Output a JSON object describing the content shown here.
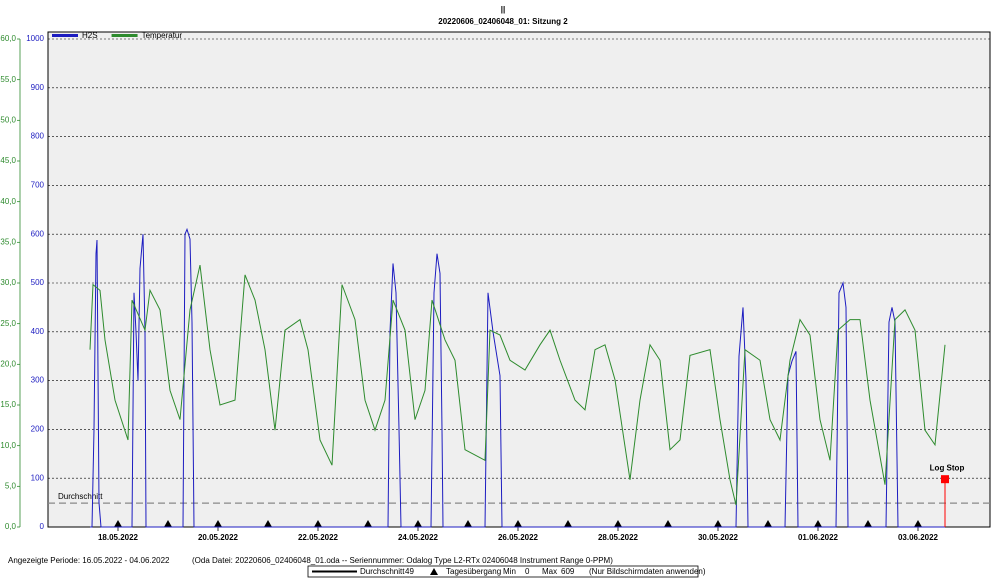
{
  "chart_data": {
    "type": "line",
    "marker": "||",
    "title": "20220606_02406048_01: Sitzung 2",
    "legend": "upper left",
    "grid": true,
    "xlim": [
      0.6,
      19.44
    ],
    "xticks": [
      {
        "value": 2,
        "label": "18.05.2022"
      },
      {
        "value": 4,
        "label": "20.05.2022"
      },
      {
        "value": 6,
        "label": "22.05.2022"
      },
      {
        "value": 8,
        "label": "24.05.2022"
      },
      {
        "value": 10,
        "label": "26.05.2022"
      },
      {
        "value": 12,
        "label": "28.05.2022"
      },
      {
        "value": 14,
        "label": "30.05.2022"
      },
      {
        "value": 16,
        "label": "01.06.2022"
      },
      {
        "value": 18,
        "label": "03.06.2022"
      }
    ],
    "ylim": [
      0,
      60
    ],
    "yticks": [
      {
        "value": 0,
        "label": "0,0"
      },
      {
        "value": 5,
        "label": "5,0"
      },
      {
        "value": 10,
        "label": "10,0"
      },
      {
        "value": 15,
        "label": "15,0"
      },
      {
        "value": 20,
        "label": "20,0"
      },
      {
        "value": 25,
        "label": "25,0"
      },
      {
        "value": 30,
        "label": "30,0"
      },
      {
        "value": 35,
        "label": "35,0"
      },
      {
        "value": 40,
        "label": "40,0"
      },
      {
        "value": 45,
        "label": "45,0"
      },
      {
        "value": 50,
        "label": "50,0"
      },
      {
        "value": 55,
        "label": "55,0"
      },
      {
        "value": 60,
        "label": "60,0"
      }
    ],
    "y_color": "#2e8b2e",
    "y2lim": [
      0,
      1000
    ],
    "y2ticks": [
      0,
      100,
      200,
      300,
      400,
      500,
      600,
      700,
      800,
      900,
      1000
    ],
    "y2_color": "#1c1cc0",
    "series": [
      {
        "name": "H2S",
        "color": "#1c1cc0",
        "axis": "y2",
        "x": [
          1.44,
          1.48,
          1.52,
          1.56,
          1.58,
          1.62,
          1.66,
          2.28,
          2.32,
          2.36,
          2.4,
          2.44,
          2.5,
          2.54,
          2.56,
          3.3,
          3.34,
          3.38,
          3.44,
          3.48,
          3.52,
          7.4,
          7.44,
          7.5,
          7.56,
          7.62,
          7.66,
          8.26,
          8.32,
          8.38,
          8.44,
          8.48,
          8.5,
          9.34,
          9.4,
          9.5,
          9.64,
          9.68,
          14.36,
          14.42,
          14.5,
          14.56,
          14.6,
          15.34,
          15.4,
          15.48,
          15.56,
          15.6,
          16.36,
          16.42,
          16.5,
          16.56,
          16.6,
          17.36,
          17.42,
          17.48,
          17.54,
          17.6,
          18.54
        ],
        "values": [
          0,
          0,
          200,
          560,
          588,
          50,
          0,
          0,
          480,
          400,
          300,
          530,
          600,
          400,
          0,
          0,
          600,
          610,
          590,
          420,
          0,
          0,
          400,
          540,
          480,
          200,
          0,
          0,
          480,
          560,
          520,
          200,
          0,
          0,
          480,
          400,
          310,
          0,
          0,
          350,
          450,
          300,
          0,
          0,
          310,
          340,
          360,
          0,
          0,
          480,
          500,
          450,
          0,
          0,
          420,
          450,
          420,
          0,
          0
        ]
      },
      {
        "name": "Temperatur",
        "color": "#2e8b2e",
        "axis": "y",
        "x": [
          1.44,
          1.5,
          1.64,
          1.74,
          1.94,
          2.2,
          2.28,
          2.54,
          2.64,
          2.84,
          3.04,
          3.24,
          3.44,
          3.64,
          3.84,
          4.04,
          4.34,
          4.54,
          4.74,
          4.94,
          5.14,
          5.34,
          5.64,
          5.8,
          6.04,
          6.28,
          6.48,
          6.74,
          6.94,
          7.14,
          7.34,
          7.5,
          7.74,
          7.94,
          8.14,
          8.28,
          8.54,
          8.74,
          8.94,
          9.34,
          9.44,
          9.64,
          9.84,
          10.14,
          10.44,
          10.64,
          10.84,
          11.14,
          11.34,
          11.54,
          11.74,
          11.94,
          12.24,
          12.44,
          12.64,
          12.84,
          13.04,
          13.24,
          13.44,
          13.84,
          14.04,
          14.24,
          14.36,
          14.54,
          14.84,
          15.04,
          15.24,
          15.44,
          15.64,
          15.84,
          16.04,
          16.24,
          16.4,
          16.64,
          16.84,
          17.04,
          17.34,
          17.54,
          17.74,
          17.94,
          18.14,
          18.34,
          18.54
        ],
        "values": [
          21.8,
          29.8,
          29.1,
          23.0,
          15.6,
          10.7,
          27.9,
          24.2,
          29.1,
          26.7,
          16.8,
          13.2,
          26.7,
          32.2,
          21.8,
          15.0,
          15.6,
          31.0,
          27.9,
          21.8,
          11.9,
          24.2,
          25.5,
          21.8,
          10.7,
          7.6,
          29.8,
          25.5,
          15.6,
          11.9,
          15.6,
          27.9,
          24.2,
          13.2,
          16.8,
          27.9,
          23.0,
          20.5,
          9.5,
          8.2,
          24.2,
          23.6,
          20.5,
          19.3,
          22.4,
          24.2,
          20.5,
          15.6,
          14.4,
          21.8,
          22.4,
          18.1,
          5.8,
          15.6,
          22.4,
          20.5,
          9.5,
          10.7,
          21.1,
          21.8,
          13.2,
          5.8,
          2.7,
          21.8,
          20.5,
          13.2,
          10.7,
          20.5,
          25.5,
          23.6,
          13.2,
          8.2,
          24.2,
          25.5,
          25.5,
          15.6,
          5.2,
          25.5,
          26.7,
          24.2,
          11.9,
          10.1,
          22.4
        ]
      }
    ],
    "average": {
      "label": "Durchschnitt",
      "value": 49,
      "color": "#888888"
    },
    "annotation": {
      "text": "Log Stop",
      "x": 18.54,
      "y": 98,
      "color": "#ff0000"
    },
    "footer": {
      "period": "Angezeigte Periode: 16.05.2022 - 04.06.2022",
      "file": "(Oda Datei: 20220606_02406048_01.oda  --  Seriennummer: Odalog Type L2-RTx 02406048 Instrument Range 0-PPM)",
      "day_transition": "Tagesübergang",
      "min_label": "Min",
      "min": 0,
      "max_label": "Max",
      "max": 609,
      "note": "(Nur Bildschirmdaten anwenden)"
    }
  }
}
